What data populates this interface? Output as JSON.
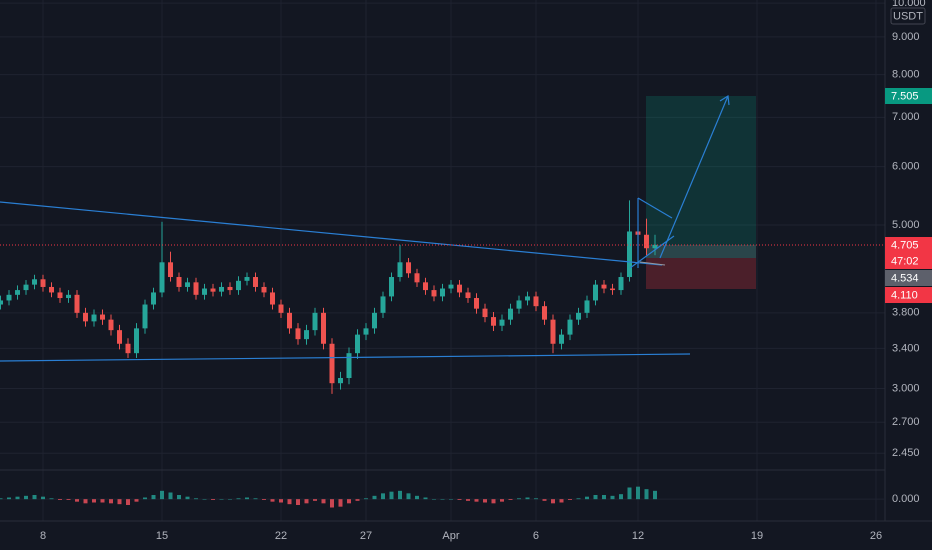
{
  "chart_data": {
    "type": "candlestick",
    "currency": "USDT",
    "log": true,
    "grid": true,
    "up_color": "#26a69a",
    "down_color": "#ef5350",
    "xlim": [
      5.47,
      57.53
    ],
    "xticks": [
      8,
      15,
      22,
      27,
      {
        "value": 32,
        "label": "Apr"
      },
      {
        "value": 37,
        "label": "6"
      },
      {
        "value": 43,
        "label": "12"
      },
      {
        "value": 50,
        "label": "19"
      },
      {
        "value": 57,
        "label": "26"
      }
    ],
    "ylim": [
      2.34,
      10.1
    ],
    "yticks": [
      {
        "value": 10,
        "label": "10.000"
      },
      {
        "value": 9,
        "label": "9.000"
      },
      {
        "value": 8,
        "label": "8.000"
      },
      {
        "value": 7,
        "label": "7.000"
      },
      {
        "value": 6,
        "label": "6.000"
      },
      {
        "value": 5,
        "label": "5.000"
      },
      {
        "value": 3.8,
        "label": "3.800"
      },
      {
        "value": 3.4,
        "label": "3.400"
      },
      {
        "value": 3,
        "label": "3.000"
      },
      {
        "value": 2.7,
        "label": "2.700"
      },
      {
        "value": 2.45,
        "label": "2.450"
      }
    ],
    "x": [
      5.5,
      6,
      6.5,
      7,
      7.5,
      8,
      8.5,
      9,
      9.5,
      10,
      10.5,
      11,
      11.5,
      12,
      12.5,
      13,
      13.5,
      14,
      14.5,
      15,
      15.5,
      16,
      16.5,
      17,
      17.5,
      18,
      18.5,
      19,
      19.5,
      20,
      20.5,
      21,
      21.5,
      22,
      22.5,
      23,
      23.5,
      24,
      24.5,
      25,
      25.5,
      26,
      26.5,
      27,
      27.5,
      28,
      28.5,
      29,
      29.5,
      30,
      30.5,
      31,
      31.5,
      32,
      32.5,
      33,
      33.5,
      34,
      34.5,
      35,
      35.5,
      36,
      36.5,
      37,
      37.5,
      38,
      38.5,
      39,
      39.5,
      40,
      40.5,
      41,
      41.5,
      42,
      42.5,
      43,
      43.5,
      44
    ],
    "open": [
      3.9,
      3.95,
      4.02,
      4.08,
      4.15,
      4.22,
      4.12,
      4.05,
      3.98,
      4.02,
      3.8,
      3.7,
      3.78,
      3.72,
      3.6,
      3.45,
      3.35,
      3.62,
      3.9,
      4.05,
      4.45,
      4.25,
      4.12,
      4.18,
      4.02,
      4.1,
      4.06,
      4.12,
      4.08,
      4.2,
      4.25,
      4.12,
      4.05,
      3.9,
      3.8,
      3.62,
      3.5,
      3.6,
      3.8,
      3.45,
      3.05,
      3.1,
      3.35,
      3.55,
      3.62,
      3.8,
      4.0,
      4.25,
      4.45,
      4.3,
      4.18,
      4.08,
      4.0,
      4.1,
      4.15,
      4.05,
      3.98,
      3.85,
      3.75,
      3.65,
      3.72,
      3.85,
      3.95,
      4.0,
      3.88,
      3.72,
      3.45,
      3.55,
      3.72,
      3.8,
      3.95,
      4.15,
      4.1,
      4.08,
      4.25,
      4.9,
      4.85,
      4.65
    ],
    "high": [
      4.01,
      4.08,
      4.14,
      4.21,
      4.28,
      4.28,
      4.18,
      4.11,
      4.08,
      4.08,
      3.86,
      3.84,
      3.84,
      3.78,
      3.66,
      3.51,
      3.68,
      3.96,
      4.11,
      5.05,
      4.6,
      4.31,
      4.24,
      4.24,
      4.16,
      4.16,
      4.18,
      4.18,
      4.26,
      4.31,
      4.31,
      4.18,
      4.11,
      3.96,
      3.86,
      3.68,
      3.66,
      3.86,
      3.86,
      3.51,
      3.16,
      3.41,
      3.61,
      3.68,
      3.86,
      4.06,
      4.31,
      4.7,
      4.51,
      4.36,
      4.24,
      4.14,
      4.16,
      4.21,
      4.21,
      4.11,
      4.04,
      3.91,
      3.81,
      3.78,
      3.91,
      4.01,
      4.06,
      4.06,
      3.94,
      3.78,
      3.61,
      3.78,
      3.86,
      4.01,
      4.21,
      4.21,
      4.16,
      4.31,
      5.4,
      5.2,
      5.1,
      4.85
    ],
    "low": [
      3.84,
      3.89,
      3.96,
      4.02,
      4.09,
      4.06,
      3.99,
      3.92,
      3.92,
      3.74,
      3.64,
      3.64,
      3.66,
      3.54,
      3.39,
      3.3,
      3.3,
      3.56,
      3.84,
      3.99,
      4.19,
      4.06,
      4.06,
      3.96,
      3.96,
      4.0,
      4.0,
      4.02,
      4.02,
      4.14,
      4.06,
      3.99,
      3.84,
      3.74,
      3.56,
      3.44,
      3.44,
      3.54,
      3.39,
      2.95,
      2.99,
      3.04,
      3.29,
      3.49,
      3.56,
      3.74,
      3.94,
      4.19,
      4.24,
      4.12,
      4.02,
      3.94,
      3.94,
      4.04,
      3.99,
      3.92,
      3.79,
      3.69,
      3.59,
      3.59,
      3.66,
      3.79,
      3.89,
      3.82,
      3.66,
      3.35,
      3.39,
      3.49,
      3.66,
      3.74,
      3.89,
      4.04,
      4.02,
      4.02,
      4.19,
      4.6,
      4.55,
      4.55
    ],
    "close": [
      3.95,
      4.02,
      4.08,
      4.15,
      4.22,
      4.12,
      4.05,
      3.98,
      4.02,
      3.8,
      3.7,
      3.78,
      3.72,
      3.6,
      3.45,
      3.35,
      3.62,
      3.9,
      4.05,
      4.45,
      4.25,
      4.12,
      4.18,
      4.02,
      4.1,
      4.06,
      4.12,
      4.08,
      4.2,
      4.25,
      4.12,
      4.05,
      3.9,
      3.8,
      3.62,
      3.5,
      3.6,
      3.8,
      3.45,
      3.05,
      3.1,
      3.35,
      3.55,
      3.62,
      3.8,
      4.0,
      4.25,
      4.45,
      4.3,
      4.18,
      4.08,
      4.0,
      4.1,
      4.15,
      4.05,
      3.98,
      3.85,
      3.75,
      3.65,
      3.72,
      3.85,
      3.95,
      4.0,
      3.88,
      3.72,
      3.45,
      3.55,
      3.72,
      3.8,
      3.95,
      4.15,
      4.1,
      4.08,
      4.25,
      4.9,
      4.85,
      4.65,
      4.7
    ],
    "indicator": {
      "ylim": [
        -0.25,
        0.35
      ],
      "yticks": [
        {
          "value": 0,
          "label": "0.000"
        }
      ],
      "up_color": "#26a69a",
      "down_color": "#f7525f",
      "values": [
        0.01,
        0.02,
        0.03,
        0.04,
        0.05,
        0.03,
        0.01,
        -0.01,
        -0.01,
        -0.03,
        -0.05,
        -0.04,
        -0.04,
        -0.05,
        -0.06,
        -0.07,
        -0.03,
        0.02,
        0.05,
        0.1,
        0.08,
        0.05,
        0.03,
        0.01,
        0.0,
        -0.01,
        0.0,
        0.0,
        0.01,
        0.02,
        0.01,
        -0.01,
        -0.03,
        -0.04,
        -0.06,
        -0.07,
        -0.05,
        -0.02,
        -0.05,
        -0.1,
        -0.09,
        -0.05,
        -0.02,
        0.01,
        0.04,
        0.07,
        0.09,
        0.1,
        0.07,
        0.04,
        0.02,
        0.0,
        0.0,
        0.0,
        -0.01,
        -0.02,
        -0.03,
        -0.04,
        -0.05,
        -0.03,
        -0.01,
        0.01,
        0.02,
        0.01,
        -0.02,
        -0.05,
        -0.04,
        -0.01,
        0.01,
        0.03,
        0.05,
        0.05,
        0.04,
        0.06,
        0.14,
        0.15,
        0.12,
        0.1
      ]
    },
    "price_tags": [
      {
        "label": "7.505",
        "color": "#089981"
      },
      {
        "label": "4.705",
        "color": "#f23645"
      },
      {
        "label": "47:02",
        "color": "#f23645"
      },
      {
        "label": "4.534",
        "color": "#5d606b"
      },
      {
        "label": "4.110",
        "color": "#f23645"
      }
    ]
  }
}
